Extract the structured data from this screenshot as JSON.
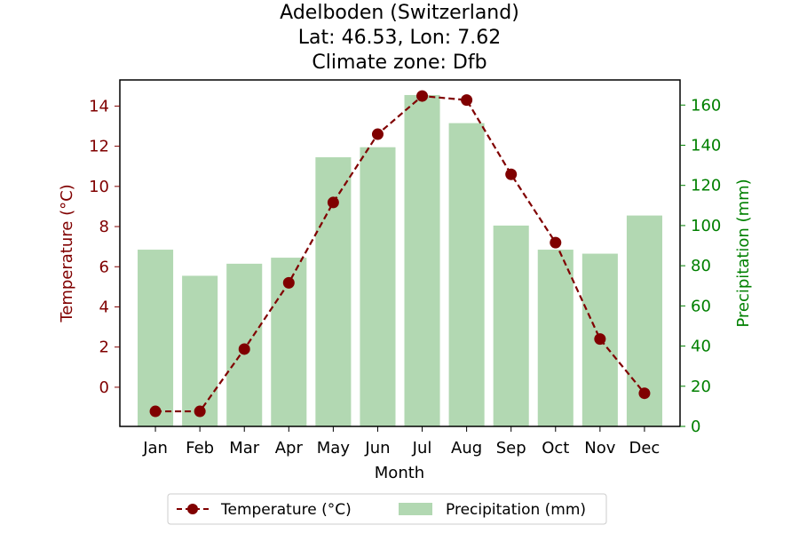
{
  "chart_data": {
    "type": "bar+line",
    "title_lines": [
      "Adelboden (Switzerland)",
      "Lat: 46.53, Lon: 7.62",
      "Climate zone: Dfb"
    ],
    "xlabel": "Month",
    "ylabel_left": "Temperature (°C)",
    "ylabel_right": "Precipitation (mm)",
    "categories": [
      "Jan",
      "Feb",
      "Mar",
      "Apr",
      "May",
      "Jun",
      "Jul",
      "Aug",
      "Sep",
      "Oct",
      "Nov",
      "Dec"
    ],
    "series": [
      {
        "name": "Temperature (°C)",
        "kind": "line",
        "axis": "left",
        "color": "#800000",
        "values": [
          -1.2,
          -1.2,
          1.9,
          5.2,
          9.2,
          12.6,
          14.5,
          14.3,
          10.6,
          7.2,
          2.4,
          -0.3
        ]
      },
      {
        "name": "Precipitation (mm)",
        "kind": "bar",
        "axis": "right",
        "color": "#b2d8b2",
        "values": [
          88,
          75,
          81,
          84,
          134,
          139,
          165,
          151,
          100,
          88,
          86,
          105
        ]
      }
    ],
    "ylim_left": [
      -1.95,
      15.3
    ],
    "yticks_left": [
      0,
      2,
      4,
      6,
      8,
      10,
      12,
      14
    ],
    "ylim_right": [
      0,
      172.5
    ],
    "yticks_right": [
      0,
      20,
      40,
      60,
      80,
      100,
      120,
      140,
      160
    ],
    "left_axis_color": "#800000",
    "right_axis_color": "#008000",
    "grid": false,
    "legend_placement": "bottom-center"
  }
}
